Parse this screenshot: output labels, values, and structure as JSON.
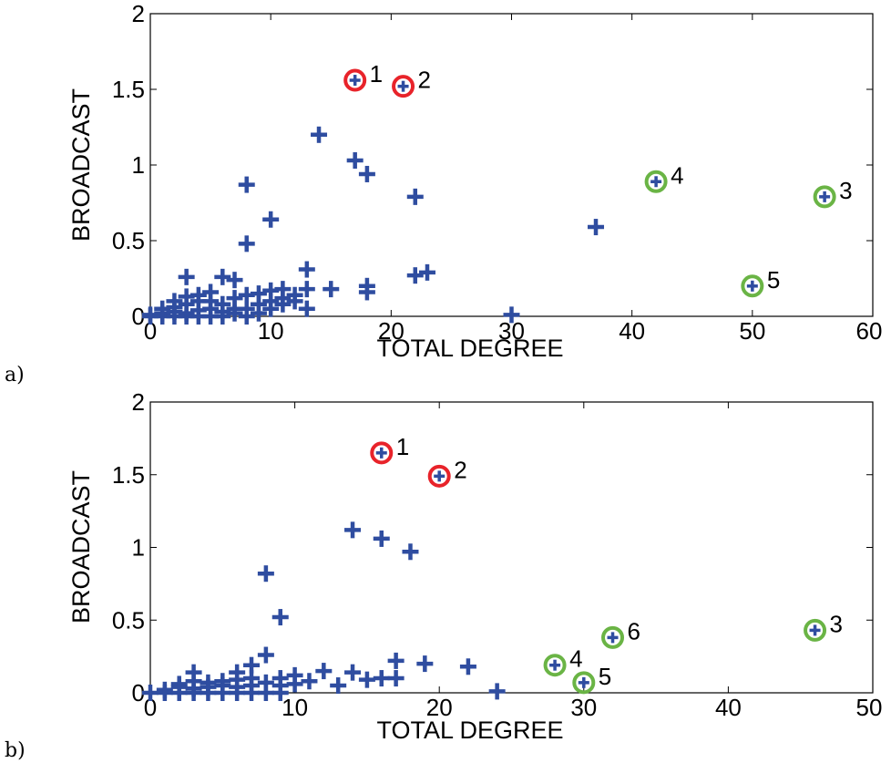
{
  "chart_data": [
    {
      "type": "scatter",
      "panel_label": "a)",
      "xlabel": "TOTAL DEGREE",
      "ylabel": "BROADCAST",
      "xlim": [
        0,
        60
      ],
      "ylim": [
        0,
        2
      ],
      "xticks": [
        "0",
        "10",
        "20",
        "30",
        "40",
        "50",
        "60"
      ],
      "yticks": [
        "0",
        "0.5",
        "1",
        "1.5",
        "2"
      ],
      "grid": false,
      "marker": "plus",
      "marker_color": "#2f4da0",
      "points": [
        [
          0,
          0
        ],
        [
          0,
          0.01
        ],
        [
          1,
          0
        ],
        [
          1,
          0.02
        ],
        [
          1,
          0.05
        ],
        [
          2,
          0
        ],
        [
          2,
          0.03
        ],
        [
          2,
          0.06
        ],
        [
          2,
          0.1
        ],
        [
          3,
          0
        ],
        [
          3,
          0.02
        ],
        [
          3,
          0.08
        ],
        [
          3,
          0.13
        ],
        [
          3,
          0.26
        ],
        [
          4,
          0
        ],
        [
          4,
          0.04
        ],
        [
          4,
          0.1
        ],
        [
          4,
          0.14
        ],
        [
          5,
          0
        ],
        [
          5,
          0.05
        ],
        [
          5,
          0.1
        ],
        [
          5,
          0.16
        ],
        [
          6,
          0
        ],
        [
          6,
          0.03
        ],
        [
          6,
          0.08
        ],
        [
          6,
          0.26
        ],
        [
          7,
          0.02
        ],
        [
          7,
          0.05
        ],
        [
          7,
          0.12
        ],
        [
          7,
          0.24
        ],
        [
          8,
          0
        ],
        [
          8,
          0.05
        ],
        [
          8,
          0.14
        ],
        [
          8,
          0.48
        ],
        [
          8,
          0.87
        ],
        [
          9,
          0.02
        ],
        [
          9,
          0.08
        ],
        [
          9,
          0.15
        ],
        [
          10,
          0.05
        ],
        [
          10,
          0.1
        ],
        [
          10,
          0.17
        ],
        [
          10,
          0.64
        ],
        [
          11,
          0.08
        ],
        [
          11,
          0.12
        ],
        [
          11,
          0.18
        ],
        [
          12,
          0.1
        ],
        [
          12,
          0.14
        ],
        [
          13,
          0.05
        ],
        [
          13,
          0.18
        ],
        [
          13,
          0.31
        ],
        [
          14,
          1.2
        ],
        [
          15,
          0.18
        ],
        [
          17,
          1.03
        ],
        [
          18,
          0.94
        ],
        [
          18,
          0.16
        ],
        [
          18,
          0.2
        ],
        [
          22,
          0.79
        ],
        [
          22,
          0.27
        ],
        [
          23,
          0.29
        ],
        [
          30,
          0.01
        ],
        [
          37,
          0.59
        ]
      ],
      "highlighted": [
        {
          "label": "1",
          "x": 17,
          "y": 1.56,
          "ring_color": "#e8232a"
        },
        {
          "label": "2",
          "x": 21,
          "y": 1.52,
          "ring_color": "#e8232a"
        },
        {
          "label": "3",
          "x": 56,
          "y": 0.79,
          "ring_color": "#6ab445"
        },
        {
          "label": "4",
          "x": 42,
          "y": 0.89,
          "ring_color": "#6ab445"
        },
        {
          "label": "5",
          "x": 50,
          "y": 0.2,
          "ring_color": "#6ab445"
        }
      ]
    },
    {
      "type": "scatter",
      "panel_label": "b)",
      "xlabel": "TOTAL DEGREE",
      "ylabel": "BROADCAST",
      "xlim": [
        0,
        50
      ],
      "ylim": [
        0,
        2
      ],
      "xticks": [
        "0",
        "10",
        "20",
        "30",
        "40",
        "50"
      ],
      "yticks": [
        "0",
        "0.5",
        "1",
        "1.5",
        "2"
      ],
      "grid": false,
      "marker": "plus",
      "marker_color": "#2f4da0",
      "points": [
        [
          0,
          0
        ],
        [
          1,
          0
        ],
        [
          1,
          0.02
        ],
        [
          2,
          0
        ],
        [
          2,
          0.04
        ],
        [
          2,
          0.06
        ],
        [
          3,
          0
        ],
        [
          3,
          0.03
        ],
        [
          3,
          0.08
        ],
        [
          3,
          0.14
        ],
        [
          4,
          0
        ],
        [
          4,
          0.04
        ],
        [
          4,
          0.07
        ],
        [
          5,
          0
        ],
        [
          5,
          0.05
        ],
        [
          5,
          0.08
        ],
        [
          6,
          0
        ],
        [
          6,
          0.04
        ],
        [
          6,
          0.09
        ],
        [
          6,
          0.14
        ],
        [
          7,
          0
        ],
        [
          7,
          0.05
        ],
        [
          7,
          0.1
        ],
        [
          7,
          0.19
        ],
        [
          8,
          0
        ],
        [
          8,
          0.07
        ],
        [
          8,
          0.26
        ],
        [
          8,
          0.82
        ],
        [
          9,
          0
        ],
        [
          9,
          0.05
        ],
        [
          9,
          0.1
        ],
        [
          9,
          0.52
        ],
        [
          10,
          0.06
        ],
        [
          10,
          0.12
        ],
        [
          11,
          0.08
        ],
        [
          12,
          0.15
        ],
        [
          13,
          0.05
        ],
        [
          14,
          0.14
        ],
        [
          14,
          1.12
        ],
        [
          15,
          0.09
        ],
        [
          16,
          0.1
        ],
        [
          16,
          1.06
        ],
        [
          17,
          0.1
        ],
        [
          17,
          0.22
        ],
        [
          18,
          0.97
        ],
        [
          19,
          0.2
        ],
        [
          22,
          0.18
        ],
        [
          24,
          0.01
        ]
      ],
      "highlighted": [
        {
          "label": "1",
          "x": 16,
          "y": 1.65,
          "ring_color": "#e8232a"
        },
        {
          "label": "2",
          "x": 20,
          "y": 1.49,
          "ring_color": "#e8232a"
        },
        {
          "label": "3",
          "x": 46,
          "y": 0.43,
          "ring_color": "#6ab445"
        },
        {
          "label": "4",
          "x": 28,
          "y": 0.19,
          "ring_color": "#6ab445"
        },
        {
          "label": "5",
          "x": 30,
          "y": 0.07,
          "ring_color": "#6ab445"
        },
        {
          "label": "6",
          "x": 32,
          "y": 0.38,
          "ring_color": "#6ab445"
        }
      ]
    }
  ]
}
